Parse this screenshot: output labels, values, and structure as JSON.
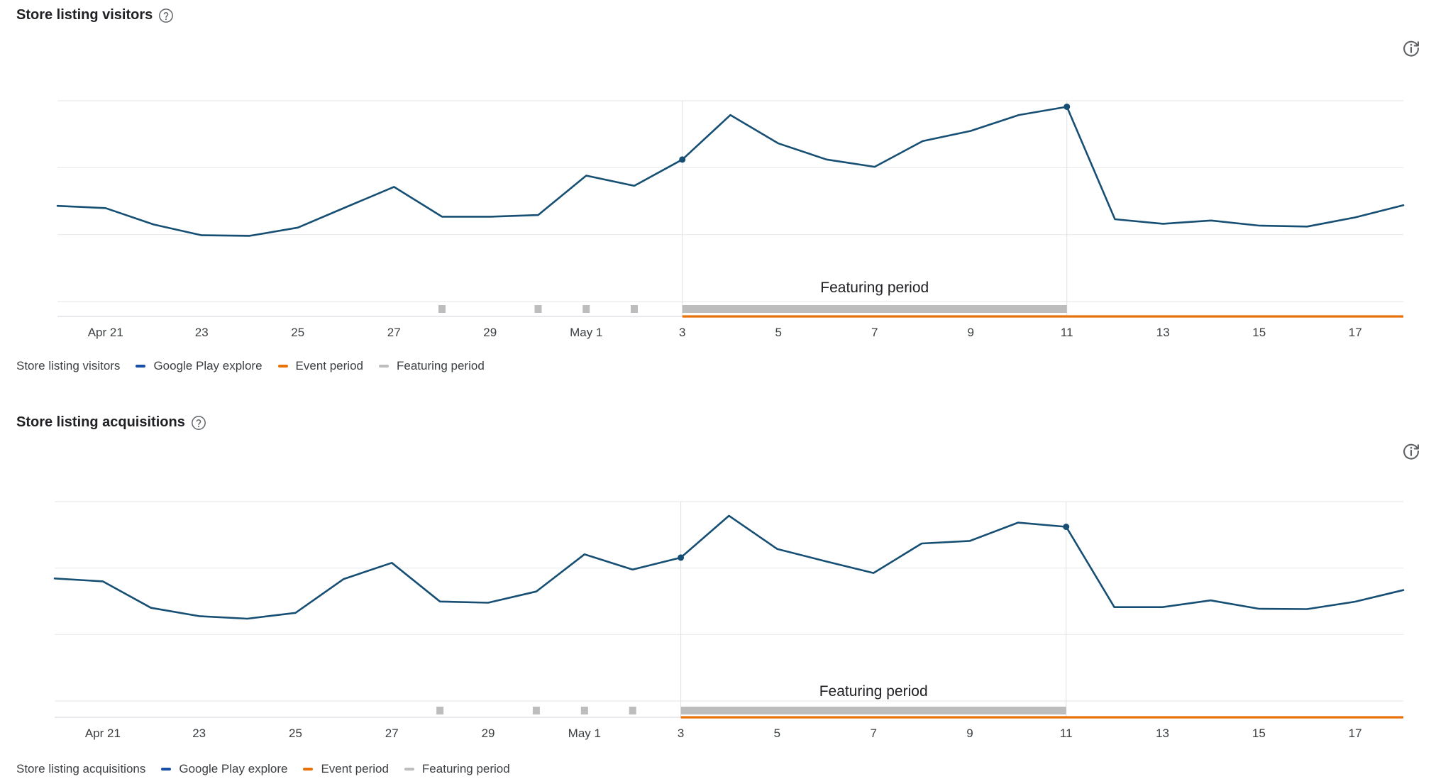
{
  "chart_data": [
    {
      "id": "visitors",
      "type": "line",
      "title": "Store listing visitors",
      "legend_label": "Store listing visitors",
      "categories": [
        "Apr 20",
        "Apr 21",
        "Apr 22",
        "Apr 23",
        "Apr 24",
        "Apr 25",
        "Apr 26",
        "Apr 27",
        "Apr 28",
        "Apr 29",
        "Apr 30",
        "May 1",
        "May 2",
        "May 3",
        "May 4",
        "May 5",
        "May 6",
        "May 7",
        "May 8",
        "May 9",
        "May 10",
        "May 11",
        "May 12",
        "May 13",
        "May 14",
        "May 15",
        "May 16",
        "May 17",
        "May 18"
      ],
      "tick_labels": [
        "Apr 21",
        "23",
        "25",
        "27",
        "29",
        "May 1",
        "3",
        "5",
        "7",
        "9",
        "11",
        "13",
        "15",
        "17"
      ],
      "series": [
        {
          "name": "Google Play explore",
          "color": "#174ea6",
          "values": [
            52.4,
            51.2,
            42.2,
            36.3,
            36.0,
            40.5,
            51.7,
            62.8,
            46.5,
            46.5,
            47.4,
            69.0,
            63.4,
            77.8,
            102.2,
            86.6,
            77.8,
            73.8,
            87.9,
            93.5,
            102.2,
            106.7,
            45.1,
            42.6,
            44.4,
            41.6,
            41.1,
            46.1,
            52.8
          ]
        }
      ],
      "highlighted_points": [
        "May 3",
        "May 11"
      ],
      "event_period": {
        "name": "Event period",
        "color": "#e8710a",
        "start": "May 3",
        "end": "May 18"
      },
      "featuring_period": {
        "name": "Featuring period",
        "label": "Featuring period",
        "color": "#bdbdbd",
        "start": "May 3",
        "end": "May 11",
        "short_days": [
          "Apr 28",
          "Apr 30",
          "May 1",
          "May 2"
        ]
      },
      "ylim": [
        0,
        110
      ],
      "grid": true
    },
    {
      "id": "acq",
      "type": "line",
      "title": "Store listing acquisitions",
      "legend_label": "Store listing acquisitions",
      "categories": [
        "Apr 20",
        "Apr 21",
        "Apr 22",
        "Apr 23",
        "Apr 24",
        "Apr 25",
        "Apr 26",
        "Apr 27",
        "Apr 28",
        "Apr 29",
        "Apr 30",
        "May 1",
        "May 2",
        "May 3",
        "May 4",
        "May 5",
        "May 6",
        "May 7",
        "May 8",
        "May 9",
        "May 10",
        "May 11",
        "May 12",
        "May 13",
        "May 14",
        "May 15",
        "May 16",
        "May 17",
        "May 18"
      ],
      "tick_labels": [
        "Apr 21",
        "23",
        "25",
        "27",
        "29",
        "May 1",
        "3",
        "5",
        "7",
        "9",
        "11",
        "13",
        "15",
        "17"
      ],
      "series": [
        {
          "name": "Google Play explore",
          "color": "#174ea6",
          "values": [
            67.6,
            66.0,
            51.4,
            46.8,
            45.4,
            48.6,
            67.3,
            76.2,
            54.9,
            54.2,
            60.4,
            80.9,
            72.5,
            79.1,
            102.2,
            83.9,
            77.1,
            70.6,
            86.9,
            88.3,
            98.4,
            96.1,
            51.8,
            51.8,
            55.5,
            50.9,
            50.7,
            54.8,
            61.2
          ]
        }
      ],
      "highlighted_points": [
        "May 3",
        "May 11"
      ],
      "event_period": {
        "name": "Event period",
        "color": "#e8710a",
        "start": "May 3",
        "end": "May 18"
      },
      "featuring_period": {
        "name": "Featuring period",
        "label": "Featuring period",
        "color": "#bdbdbd",
        "start": "May 3",
        "end": "May 11",
        "short_days": [
          "Apr 28",
          "Apr 30",
          "May 1",
          "May 2"
        ]
      },
      "ylim": [
        0,
        110
      ],
      "grid": true
    }
  ]
}
